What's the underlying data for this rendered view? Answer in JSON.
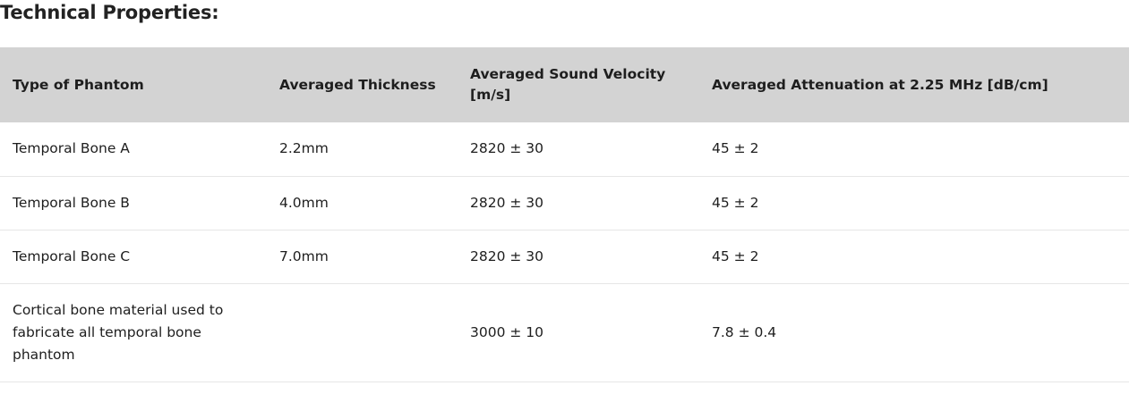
{
  "title": "Technical Properties:",
  "table": {
    "headers": [
      "Type of Phantom",
      "Averaged Thickness",
      "Averaged Sound Velocity [m/s]",
      "Averaged Attenuation at 2.25 MHz [dB/cm]"
    ],
    "rows": [
      [
        "Temporal Bone A",
        "2.2mm",
        "2820 ± 30",
        "45 ± 2"
      ],
      [
        "Temporal Bone B",
        "4.0mm",
        "2820 ± 30",
        "45 ± 2"
      ],
      [
        "Temporal Bone C",
        "7.0mm",
        "2820 ± 30",
        "45 ± 2"
      ],
      [
        "Cortical bone material used to fabricate all temporal bone phantom",
        "",
        "3000 ± 10",
        "7.8 ± 0.4"
      ]
    ]
  }
}
